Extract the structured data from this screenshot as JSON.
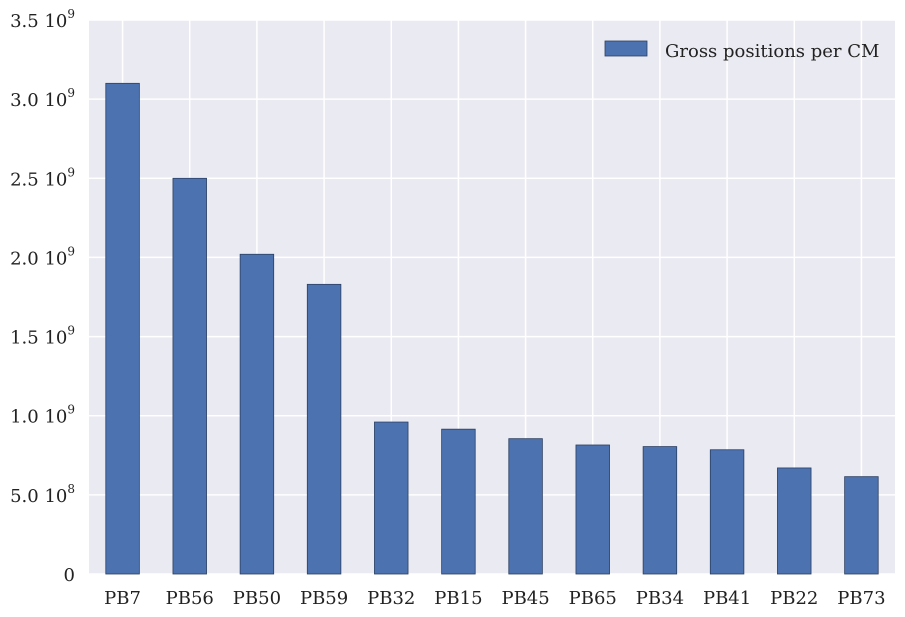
{
  "chart_data": {
    "type": "bar",
    "categories": [
      "PB7",
      "PB56",
      "PB50",
      "PB59",
      "PB32",
      "PB15",
      "PB45",
      "PB65",
      "PB34",
      "PB41",
      "PB22",
      "PB73"
    ],
    "series": [
      {
        "name": "Gross positions per CM",
        "values": [
          3100000000,
          2500000000,
          2020000000,
          1830000000,
          960000000,
          915000000,
          855000000,
          815000000,
          805000000,
          785000000,
          670000000,
          615000000
        ]
      }
    ],
    "ylim": [
      0,
      3500000000
    ],
    "yticks": [
      {
        "value": 0,
        "mantissa": "0",
        "exponent": ""
      },
      {
        "value": 500000000,
        "mantissa": "5.0 10",
        "exponent": "8"
      },
      {
        "value": 1000000000,
        "mantissa": "1.0 10",
        "exponent": "9"
      },
      {
        "value": 1500000000,
        "mantissa": "1.5 10",
        "exponent": "9"
      },
      {
        "value": 2000000000,
        "mantissa": "2.0 10",
        "exponent": "9"
      },
      {
        "value": 2500000000,
        "mantissa": "2.5 10",
        "exponent": "9"
      },
      {
        "value": 3000000000,
        "mantissa": "3.0 10",
        "exponent": "9"
      },
      {
        "value": 3500000000,
        "mantissa": "3.5 10",
        "exponent": "9"
      }
    ],
    "grid": true,
    "legend_position": "top-right",
    "colors": {
      "bar": "#4c72b0",
      "bar_edge": "#2b3f63",
      "plot_bg": "#eaeaf2",
      "grid": "#ffffff"
    }
  }
}
